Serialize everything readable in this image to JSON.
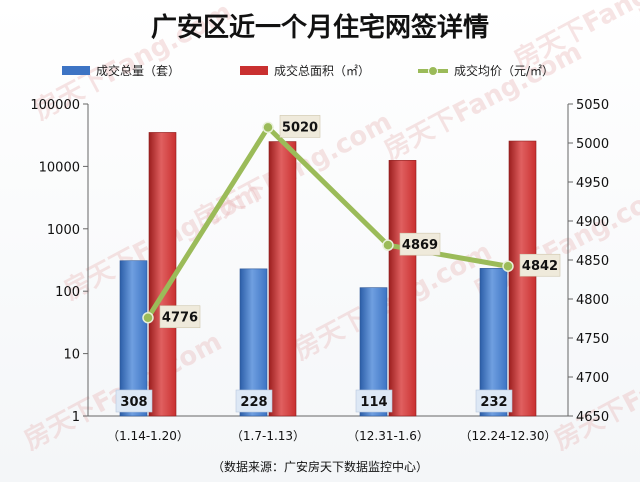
{
  "chart_data": {
    "type": "bar",
    "title": "广安区近一个月住宅网签详情",
    "categories": [
      "（1.14-1.20）",
      "（1.7-1.13）",
      "（12.31-1.6）",
      "（12.24-12.30）"
    ],
    "series": [
      {
        "name": "成交总量（套）",
        "type": "bar",
        "axis": "left",
        "color": "#3d74c4",
        "values": [
          308,
          228,
          114,
          232
        ],
        "labels": [
          "308",
          "228",
          "114",
          "232"
        ]
      },
      {
        "name": "成交总面积（㎡）",
        "type": "bar",
        "axis": "left",
        "color": "#c93030",
        "values": [
          35000,
          25000,
          12500,
          25500
        ]
      },
      {
        "name": "成交均价（元/㎡）",
        "type": "line",
        "axis": "right",
        "color": "#9bbb59",
        "values": [
          4776,
          5020,
          4869,
          4842
        ],
        "labels": [
          "4776",
          "5020",
          "4869",
          "4842"
        ]
      }
    ],
    "left_axis": {
      "scale": "log",
      "ylim": [
        1,
        100000
      ],
      "ticks": [
        "1",
        "10",
        "100",
        "1000",
        "10000",
        "100000"
      ]
    },
    "right_axis": {
      "scale": "linear",
      "ylim": [
        4650,
        5050
      ],
      "ticks": [
        "4650",
        "4700",
        "4750",
        "4800",
        "4850",
        "4900",
        "4950",
        "5000",
        "5050"
      ]
    },
    "legend_position": "top",
    "grid": false,
    "source": "（数据来源：广安房天下数据监控中心）"
  },
  "watermark_text": "房天下Fang.com"
}
